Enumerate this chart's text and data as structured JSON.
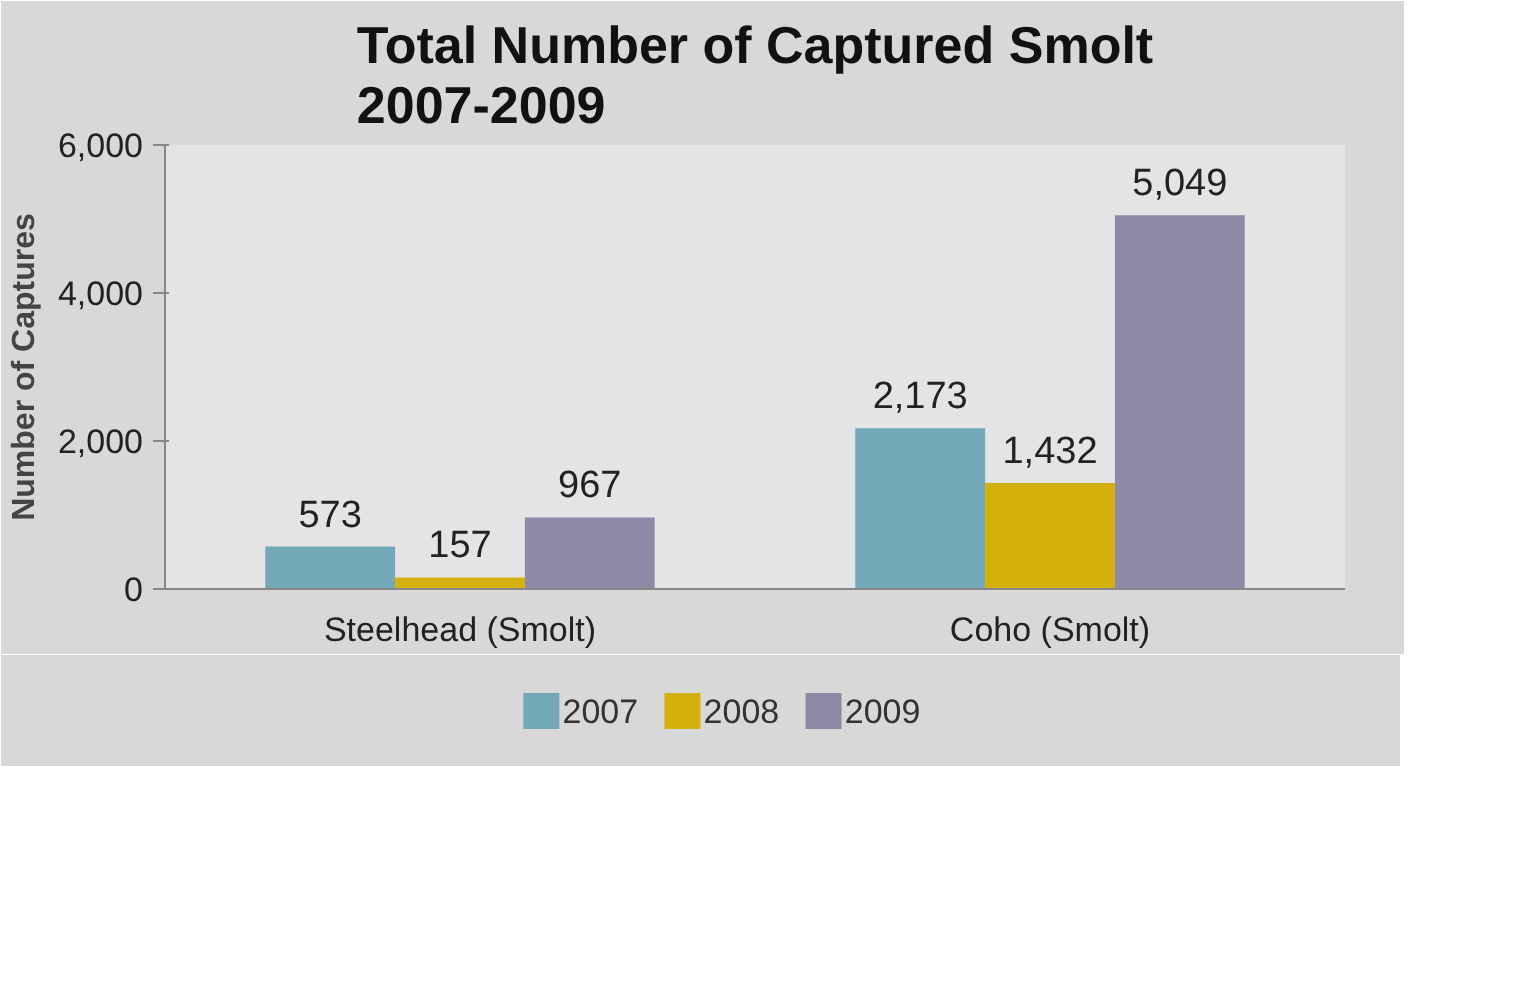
{
  "chart_data": {
    "type": "bar",
    "title": "Total Number of Captured Smolt 2007-2009",
    "ylabel": "Number of Captures",
    "categories": [
      "Steelhead (Smolt)",
      "Coho (Smolt)"
    ],
    "series": [
      {
        "name": "2007",
        "color": "#72a8b8",
        "values": [
          573,
          2173
        ],
        "value_labels": [
          "573",
          "2,173"
        ]
      },
      {
        "name": "2008",
        "color": "#d4b00c",
        "values": [
          157,
          1432
        ],
        "value_labels": [
          "157",
          "1,432"
        ]
      },
      {
        "name": "2009",
        "color": "#8f89a8",
        "values": [
          967,
          5049
        ],
        "value_labels": [
          "967",
          "5,049"
        ]
      }
    ],
    "ylim": [
      0,
      6000
    ],
    "yticks": [
      {
        "value": 0,
        "label": "0"
      },
      {
        "value": 2000,
        "label": "2,000"
      },
      {
        "value": 4000,
        "label": "4,000"
      },
      {
        "value": 6000,
        "label": "6,000"
      }
    ],
    "legend": "bottom"
  }
}
